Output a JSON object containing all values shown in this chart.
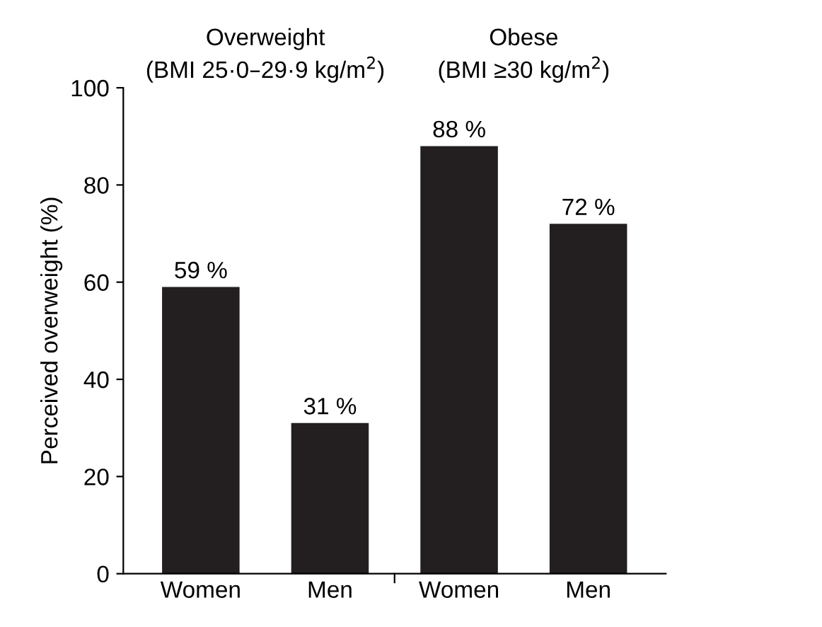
{
  "chart_data": {
    "type": "bar",
    "categories": [
      "Women",
      "Men",
      "Women",
      "Men"
    ],
    "values": [
      59,
      31,
      88,
      72
    ],
    "value_labels": [
      "59 %",
      "31 %",
      "88 %",
      "72 %"
    ],
    "color": "#231f20",
    "ylabel": "Perceived overweight (%)",
    "ylim": [
      0,
      100
    ],
    "yticks": [
      0,
      20,
      40,
      60,
      80,
      100
    ],
    "annotations": [
      "Overweight\n(BMI 25·0–29·9 kg/m$^{2}$)",
      "Obese\n(BMI ≥30 kg/m$^{2}$)"
    ],
    "grid": false,
    "legend": false
  }
}
